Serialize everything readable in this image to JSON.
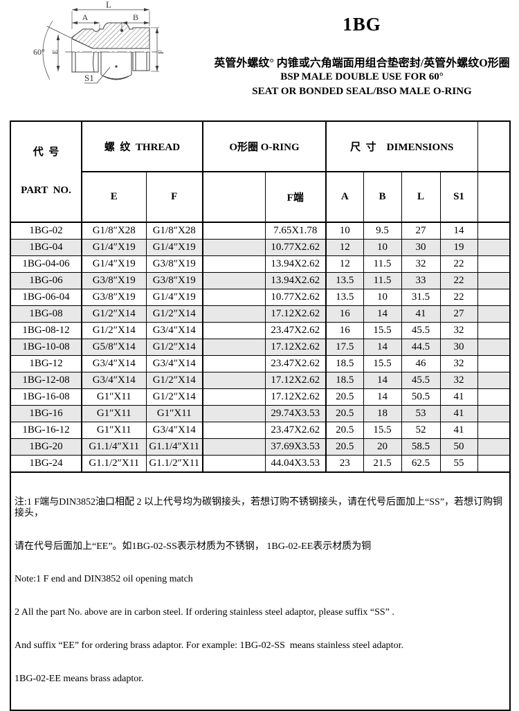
{
  "title": "1BG",
  "subtitle_cn": "英管外螺纹° 内锥或六角端面用组合垫密封/英管外螺纹O形圈",
  "subtitle_en1": "BSP MALE DOUBLE USE FOR 60°",
  "subtitle_en2": "SEAT OR BONDED SEAL/BSO MALE O-RING",
  "drawing": {
    "labels": {
      "overall_length": "L",
      "left_length": "A",
      "right_length": "B",
      "left_thread_dia": "E",
      "right_thread_dia": "F",
      "hex_size": "S1",
      "cone_angle": "60°"
    }
  },
  "table": {
    "header_row1": {
      "part": "代  号",
      "thread": "螺  纹  THREAD",
      "oring": "O形圈 O-RING",
      "dims": "尺  寸    DIMENSIONS",
      "extra": ""
    },
    "header_row2": {
      "part": "PART  NO.",
      "e": "E",
      "f": "F",
      "oring_blank": "",
      "oring_f": "F端",
      "a": "A",
      "b": "B",
      "l": "L",
      "s1": "S1",
      "extra": ""
    },
    "rows": [
      [
        "1BG-02",
        "G1/8″X28",
        "G1/8″X28",
        "",
        "7.65X1.78",
        "10",
        "9.5",
        "27",
        "14",
        ""
      ],
      [
        "1BG-04",
        "G1/4″X19",
        "G1/4″X19",
        "",
        "10.77X2.62",
        "12",
        "10",
        "30",
        "19",
        ""
      ],
      [
        "1BG-04-06",
        "G1/4″X19",
        "G3/8″X19",
        "",
        "13.94X2.62",
        "12",
        "11.5",
        "32",
        "22",
        ""
      ],
      [
        "1BG-06",
        "G3/8″X19",
        "G3/8″X19",
        "",
        "13.94X2.62",
        "13.5",
        "11.5",
        "33",
        "22",
        ""
      ],
      [
        "1BG-06-04",
        "G3/8″X19",
        "G1/4″X19",
        "",
        "10.77X2.62",
        "13.5",
        "10",
        "31.5",
        "22",
        ""
      ],
      [
        "1BG-08",
        "G1/2″X14",
        "G1/2″X14",
        "",
        "17.12X2.62",
        "16",
        "14",
        "41",
        "27",
        ""
      ],
      [
        "1BG-08-12",
        "G1/2″X14",
        "G3/4″X14",
        "",
        "23.47X2.62",
        "16",
        "15.5",
        "45.5",
        "32",
        ""
      ],
      [
        "1BG-10-08",
        "G5/8″X14",
        "G1/2″X14",
        "",
        "17.12X2.62",
        "17.5",
        "14",
        "44.5",
        "30",
        ""
      ],
      [
        "1BG-12",
        "G3/4″X14",
        "G3/4″X14",
        "",
        "23.47X2.62",
        "18.5",
        "15.5",
        "46",
        "32",
        ""
      ],
      [
        "1BG-12-08",
        "G3/4″X14",
        "G1/2″X14",
        "",
        "17.12X2.62",
        "18.5",
        "14",
        "45.5",
        "32",
        ""
      ],
      [
        "1BG-16-08",
        "G1″X11",
        "G1/2″X14",
        "",
        "17.12X2.62",
        "20.5",
        "14",
        "50.5",
        "41",
        ""
      ],
      [
        "1BG-16",
        "G1″X11",
        "G1″X11",
        "",
        "29.74X3.53",
        "20.5",
        "18",
        "53",
        "41",
        ""
      ],
      [
        "1BG-16-12",
        "G1″X11",
        "G3/4″X14",
        "",
        "23.47X2.62",
        "20.5",
        "15.5",
        "52",
        "41",
        ""
      ],
      [
        "1BG-20",
        "G1.1/4″X11",
        "G1.1/4″X11",
        "",
        "37.69X3.53",
        "20.5",
        "20",
        "58.5",
        "50",
        ""
      ],
      [
        "1BG-24",
        "G1.1/2″X11",
        "G1.1/2″X11",
        "",
        "44.04X3.53",
        "23",
        "21.5",
        "62.5",
        "55",
        ""
      ]
    ]
  },
  "notes": {
    "cn1": "注:1 F端与DIN3852油口相配 2 以上代号均为碳钢接头，若想订购不锈钢接头，请在代号后面加上“SS”，若想订购铜接头，",
    "cn2": "请在代号后面加上“EE”。如1BG-02-SS表示材质为不锈钢， 1BG-02-EE表示材质为铜",
    "en1": "Note:1 F end and DIN3852 oil opening match",
    "en2": "2 All the part No. above are in carbon steel. If ordering stainless steel adaptor, please suffix “SS” .",
    "en3": "And suffix “EE” for ordering brass adaptor. For example: 1BG-02-SS  means stainless steel adaptor.",
    "en4": "1BG-02-EE means brass adaptor."
  },
  "colors": {
    "ink": "#000000",
    "paper": "#ffffff",
    "row_stripe": "#e8e8e8",
    "drawing_line": "#3c3c3c"
  }
}
